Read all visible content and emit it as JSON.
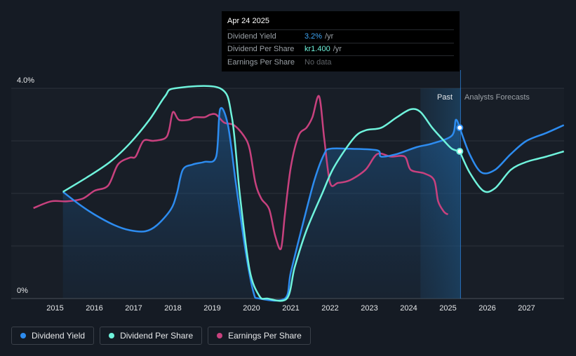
{
  "chart_data": {
    "type": "line",
    "x_axis": {
      "ticks": [
        "2015",
        "2016",
        "2017",
        "2018",
        "2019",
        "2020",
        "2021",
        "2022",
        "2023",
        "2024",
        "2025",
        "2026",
        "2027"
      ],
      "range": [
        2014.45,
        2027.95
      ]
    },
    "y_axis": {
      "range": [
        0,
        4.0
      ],
      "tick_labels": [
        "0%",
        "4.0%"
      ],
      "gridlines": [
        0,
        1,
        2,
        3,
        4
      ]
    },
    "regions": {
      "past_label": "Past",
      "forecast_label": "Analysts Forecasts",
      "highlight_range": [
        2024.3,
        2025.32
      ],
      "divider_x": 2025.32
    },
    "series": [
      {
        "name": "Dividend Yield",
        "color": "#2d8cf0",
        "filled": true,
        "past": [
          [
            2015.2,
            2.03
          ],
          [
            2015.6,
            1.8
          ],
          [
            2016.0,
            1.6
          ],
          [
            2016.5,
            1.4
          ],
          [
            2016.9,
            1.3
          ],
          [
            2017.3,
            1.28
          ],
          [
            2017.6,
            1.4
          ],
          [
            2017.95,
            1.7
          ],
          [
            2018.1,
            2.0
          ],
          [
            2018.25,
            2.45
          ],
          [
            2018.5,
            2.55
          ],
          [
            2018.8,
            2.6
          ],
          [
            2019.1,
            2.7
          ],
          [
            2019.2,
            3.6
          ],
          [
            2019.4,
            3.3
          ],
          [
            2019.6,
            2.2
          ],
          [
            2019.85,
            0.9
          ],
          [
            2020.05,
            0.12
          ],
          [
            2020.2,
            0.0
          ],
          [
            2020.85,
            0.0
          ],
          [
            2021.0,
            0.5
          ],
          [
            2021.3,
            1.4
          ],
          [
            2021.6,
            2.25
          ],
          [
            2021.85,
            2.75
          ],
          [
            2022.0,
            2.85
          ],
          [
            2022.5,
            2.85
          ],
          [
            2023.2,
            2.82
          ],
          [
            2023.3,
            2.7
          ],
          [
            2023.7,
            2.75
          ],
          [
            2024.2,
            2.88
          ],
          [
            2024.6,
            2.95
          ],
          [
            2025.1,
            3.1
          ],
          [
            2025.2,
            3.4
          ],
          [
            2025.3,
            3.25
          ]
        ],
        "forecast": [
          [
            2025.3,
            3.25
          ],
          [
            2025.55,
            2.75
          ],
          [
            2025.85,
            2.4
          ],
          [
            2026.2,
            2.45
          ],
          [
            2026.6,
            2.75
          ],
          [
            2027.0,
            3.0
          ],
          [
            2027.5,
            3.15
          ],
          [
            2027.95,
            3.3
          ]
        ]
      },
      {
        "name": "Dividend Per Share",
        "color": "#6ff3dc",
        "filled": false,
        "past": [
          [
            2015.2,
            2.03
          ],
          [
            2015.8,
            2.3
          ],
          [
            2016.4,
            2.6
          ],
          [
            2016.9,
            2.95
          ],
          [
            2017.4,
            3.4
          ],
          [
            2017.8,
            3.85
          ],
          [
            2018.05,
            4.0
          ],
          [
            2019.2,
            4.0
          ],
          [
            2019.5,
            3.45
          ],
          [
            2019.7,
            2.0
          ],
          [
            2019.95,
            0.55
          ],
          [
            2020.2,
            0.05
          ],
          [
            2020.4,
            0.0
          ],
          [
            2020.9,
            0.0
          ],
          [
            2021.1,
            0.6
          ],
          [
            2021.4,
            1.3
          ],
          [
            2021.8,
            2.0
          ],
          [
            2022.1,
            2.5
          ],
          [
            2022.6,
            3.05
          ],
          [
            2022.9,
            3.2
          ],
          [
            2023.3,
            3.25
          ],
          [
            2023.7,
            3.45
          ],
          [
            2024.05,
            3.6
          ],
          [
            2024.3,
            3.55
          ],
          [
            2024.6,
            3.25
          ],
          [
            2024.9,
            3.0
          ],
          [
            2025.1,
            2.85
          ],
          [
            2025.3,
            2.8
          ]
        ],
        "forecast": [
          [
            2025.3,
            2.8
          ],
          [
            2025.55,
            2.4
          ],
          [
            2025.9,
            2.05
          ],
          [
            2026.2,
            2.1
          ],
          [
            2026.6,
            2.45
          ],
          [
            2027.0,
            2.6
          ],
          [
            2027.5,
            2.7
          ],
          [
            2027.95,
            2.8
          ]
        ]
      },
      {
        "name": "Earnings Per Share",
        "color": "#c8417e",
        "filled": false,
        "past": [
          [
            2014.45,
            1.72
          ],
          [
            2014.9,
            1.85
          ],
          [
            2015.3,
            1.85
          ],
          [
            2015.7,
            1.9
          ],
          [
            2016.0,
            2.05
          ],
          [
            2016.35,
            2.15
          ],
          [
            2016.6,
            2.55
          ],
          [
            2016.9,
            2.68
          ],
          [
            2017.05,
            2.7
          ],
          [
            2017.25,
            3.0
          ],
          [
            2017.5,
            3.0
          ],
          [
            2017.8,
            3.05
          ],
          [
            2017.9,
            3.2
          ],
          [
            2018.0,
            3.55
          ],
          [
            2018.15,
            3.4
          ],
          [
            2018.4,
            3.4
          ],
          [
            2018.55,
            3.45
          ],
          [
            2018.8,
            3.45
          ],
          [
            2018.95,
            3.5
          ],
          [
            2019.1,
            3.5
          ],
          [
            2019.3,
            3.35
          ],
          [
            2019.55,
            3.3
          ],
          [
            2019.8,
            3.1
          ],
          [
            2019.95,
            2.85
          ],
          [
            2020.1,
            2.2
          ],
          [
            2020.25,
            1.9
          ],
          [
            2020.45,
            1.7
          ],
          [
            2020.6,
            1.2
          ],
          [
            2020.75,
            0.95
          ],
          [
            2020.85,
            1.6
          ],
          [
            2021.0,
            2.5
          ],
          [
            2021.2,
            3.1
          ],
          [
            2021.4,
            3.25
          ],
          [
            2021.55,
            3.45
          ],
          [
            2021.72,
            3.85
          ],
          [
            2021.85,
            3.05
          ],
          [
            2022.0,
            2.2
          ],
          [
            2022.2,
            2.2
          ],
          [
            2022.5,
            2.25
          ],
          [
            2022.9,
            2.45
          ],
          [
            2023.2,
            2.75
          ],
          [
            2023.55,
            2.7
          ],
          [
            2023.9,
            2.7
          ],
          [
            2024.05,
            2.45
          ],
          [
            2024.4,
            2.38
          ],
          [
            2024.65,
            2.25
          ],
          [
            2024.75,
            1.85
          ],
          [
            2024.9,
            1.65
          ],
          [
            2025.0,
            1.6
          ]
        ]
      }
    ],
    "tooltip": {
      "date": "Apr 24 2025",
      "rows": [
        {
          "label": "Dividend Yield",
          "value": "3.2%",
          "unit": "/yr"
        },
        {
          "label": "Dividend Per Share",
          "value": "kr1.400",
          "unit": "/yr"
        },
        {
          "label": "Earnings Per Share",
          "value": "No data",
          "unit": ""
        }
      ]
    },
    "legend": [
      "Dividend Yield",
      "Dividend Per Share",
      "Earnings Per Share"
    ]
  }
}
